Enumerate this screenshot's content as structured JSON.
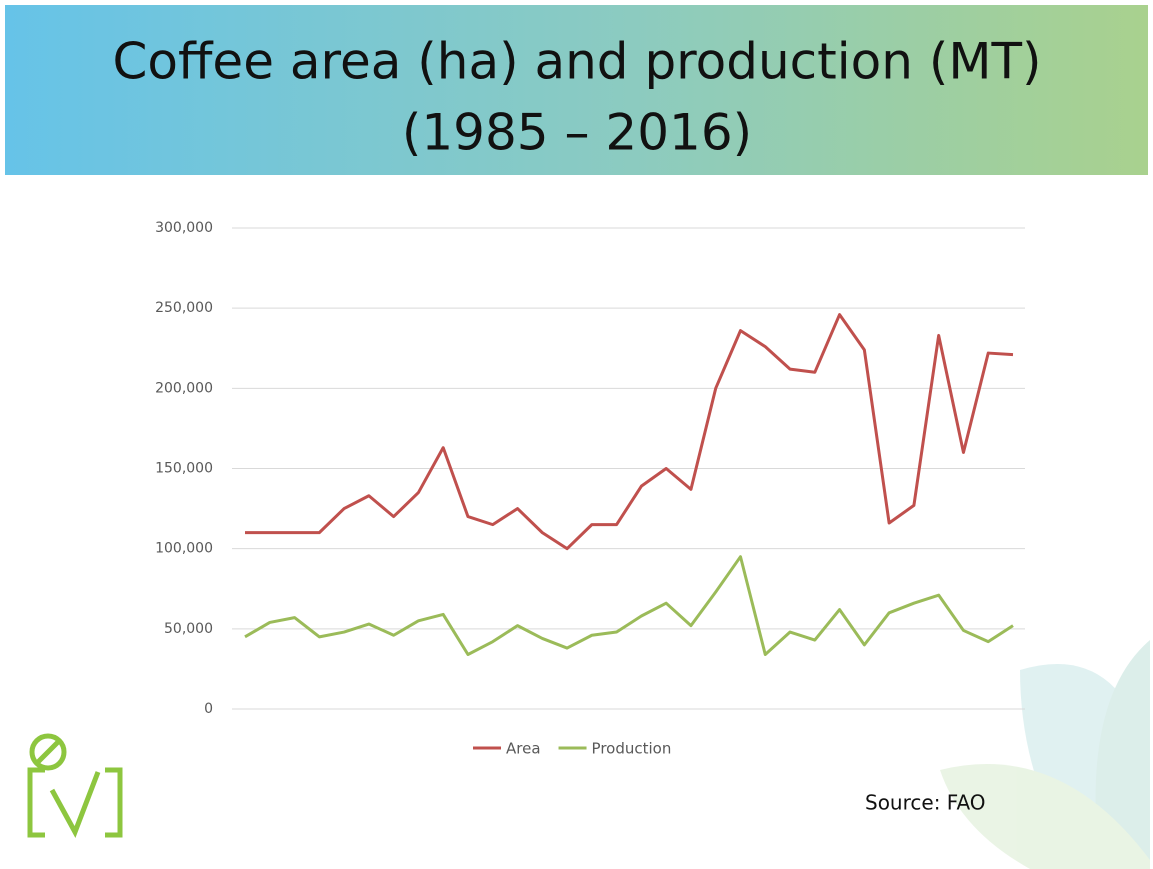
{
  "chart_data": {
    "type": "line",
    "title": "Coffee area (ha) and production (MT)",
    "subtitle": "(1985 – 2016)",
    "source": "Source: FAO",
    "categories": [
      null,
      null,
      null,
      null,
      null,
      null,
      null,
      null,
      null,
      null,
      null,
      null,
      null,
      null,
      null,
      null,
      null,
      null,
      null,
      null,
      null,
      null,
      null,
      null,
      null,
      null,
      null,
      null,
      null,
      null,
      null,
      null
    ],
    "series": [
      {
        "name": "Area",
        "color": "#c0504d",
        "values": [
          110000,
          110000,
          110000,
          110000,
          125000,
          133000,
          120000,
          135000,
          163000,
          120000,
          115000,
          125000,
          110000,
          100000,
          115000,
          115000,
          139000,
          150000,
          137000,
          200000,
          236000,
          226000,
          212000,
          210000,
          246000,
          224000,
          116000,
          127000,
          233000,
          160000,
          222000,
          221000
        ]
      },
      {
        "name": "Production",
        "color": "#9bbb59",
        "values": [
          45000,
          54000,
          57000,
          45000,
          48000,
          53000,
          46000,
          55000,
          59000,
          34000,
          42000,
          52000,
          44000,
          38000,
          46000,
          48000,
          58000,
          66000,
          52000,
          73000,
          95000,
          34000,
          48000,
          43000,
          62000,
          40000,
          60000,
          66000,
          71000,
          49000,
          42000,
          52000
        ]
      }
    ],
    "ylim": [
      0,
      300000
    ],
    "yticks": [
      0,
      {
        "value": 50000,
        "label": "50,000"
      },
      {
        "value": 100000,
        "label": "100,000"
      },
      {
        "value": 150000,
        "label": "150,000"
      },
      {
        "value": 200000,
        "label": "200,000"
      },
      {
        "value": 250000,
        "label": "250,000"
      },
      {
        "value": 300000,
        "label": "300,000"
      }
    ],
    "grid": true,
    "legend": "bottom"
  }
}
